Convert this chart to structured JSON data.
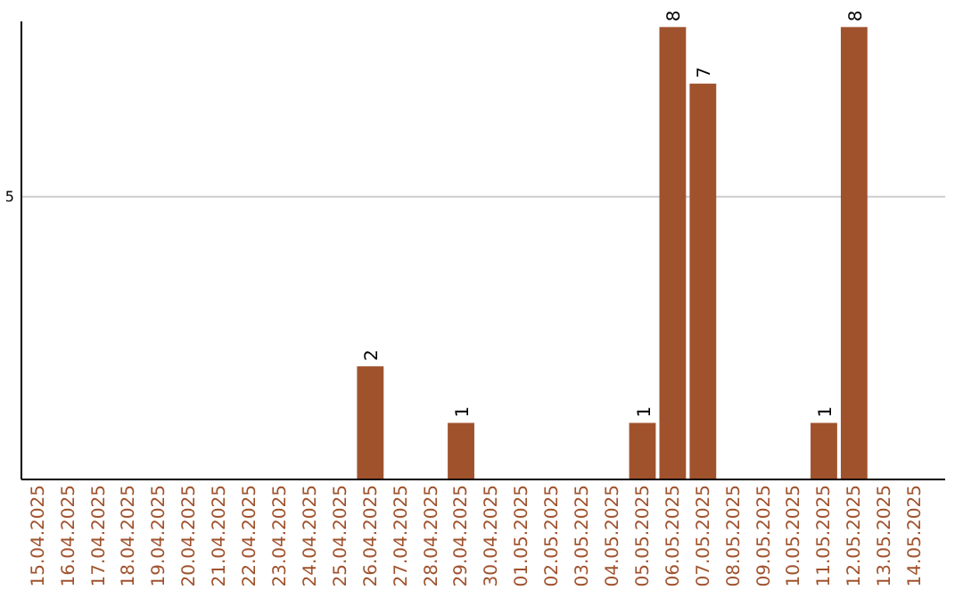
{
  "chart_data": {
    "type": "bar",
    "categories": [
      "15.04.2025",
      "16.04.2025",
      "17.04.2025",
      "18.04.2025",
      "19.04.2025",
      "20.04.2025",
      "21.04.2025",
      "22.04.2025",
      "23.04.2025",
      "24.04.2025",
      "25.04.2025",
      "26.04.2025",
      "27.04.2025",
      "28.04.2025",
      "29.04.2025",
      "30.04.2025",
      "01.05.2025",
      "02.05.2025",
      "03.05.2025",
      "04.05.2025",
      "05.05.2025",
      "06.05.2025",
      "07.05.2025",
      "08.05.2025",
      "09.05.2025",
      "10.05.2025",
      "11.05.2025",
      "12.05.2025",
      "13.05.2025",
      "14.05.2025"
    ],
    "values": [
      0,
      0,
      0,
      0,
      0,
      0,
      0,
      0,
      0,
      0,
      0,
      2,
      0,
      0,
      1,
      0,
      0,
      0,
      0,
      0,
      1,
      8,
      7,
      0,
      0,
      0,
      1,
      8,
      0,
      0
    ],
    "value_labels": [
      null,
      null,
      null,
      null,
      null,
      null,
      null,
      null,
      null,
      null,
      null,
      "2",
      null,
      null,
      "1",
      null,
      null,
      null,
      null,
      null,
      "1",
      "8",
      "7",
      null,
      null,
      null,
      "1",
      "8",
      null,
      null
    ],
    "color": "#a0522d",
    "ylim": [
      0,
      8.1
    ],
    "yticks": [
      0,
      5
    ],
    "grid": "y"
  }
}
